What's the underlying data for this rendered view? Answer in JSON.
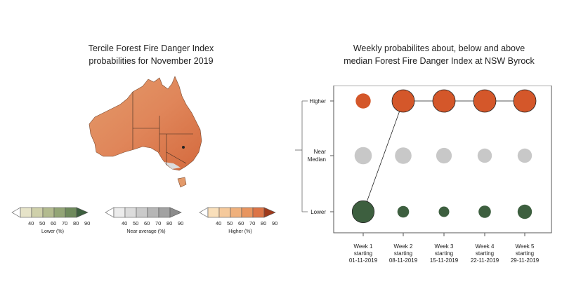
{
  "map_panel": {
    "title_line1": "Tercile Forest Fire Danger Index",
    "title_line2": "probabilities for November 2019"
  },
  "legends": [
    {
      "caption": "Lower (%)",
      "ticks": [
        "40",
        "50",
        "60",
        "70",
        "80",
        "90"
      ],
      "colors": [
        "#e6e3c8",
        "#cfd0aa",
        "#b3bb8f",
        "#93a576",
        "#6f8a5c",
        "#3d5f3f"
      ]
    },
    {
      "caption": "Near average (%)",
      "ticks": [
        "40",
        "50",
        "60",
        "70",
        "80",
        "90"
      ],
      "colors": [
        "#ececec",
        "#dcdcdc",
        "#cacaca",
        "#b6b6b6",
        "#a2a2a2",
        "#8c8c8c"
      ]
    },
    {
      "caption": "Higher (%)",
      "ticks": [
        "40",
        "50",
        "60",
        "70",
        "80",
        "90"
      ],
      "colors": [
        "#f9dfba",
        "#f5c99b",
        "#efb07c",
        "#e8955f",
        "#dc7446",
        "#9e3a1c"
      ]
    }
  ],
  "chart_data": {
    "type": "scatter",
    "title": "Weekly probabilites about, below and above median Forest Fire Danger Index at NSW Byrock",
    "title_line1": "Weekly probabilites about, below and above",
    "title_line2": "median Forest Fire Danger Index at NSW Byrock",
    "categories": [
      {
        "line1": "Week 1",
        "line2": "starting",
        "line3": "01-11-2019"
      },
      {
        "line1": "Week 2",
        "line2": "starting",
        "line3": "08-11-2019"
      },
      {
        "line1": "Week 3",
        "line2": "starting",
        "line3": "15-11-2019"
      },
      {
        "line1": "Week 4",
        "line2": "starting",
        "line3": "22-11-2019"
      },
      {
        "line1": "Week 5",
        "line2": "starting",
        "line3": "29-11-2019"
      }
    ],
    "y_categories": [
      {
        "line1": "Higher",
        "line2": ""
      },
      {
        "line1": "Near",
        "line2": "Median"
      },
      {
        "line1": "Lower",
        "line2": ""
      }
    ],
    "series": [
      {
        "name": "Higher",
        "color": "#d4572a",
        "values": [
          30,
          95,
          95,
          95,
          95
        ]
      },
      {
        "name": "Near Median",
        "color": "#c8c8c8",
        "values": [
          45,
          40,
          33,
          25,
          25
        ]
      },
      {
        "name": "Lower",
        "color": "#3d5f3f",
        "values": [
          90,
          12,
          8,
          15,
          25
        ]
      }
    ],
    "most_likely_path": [
      "Lower",
      "Higher",
      "Higher",
      "Higher",
      "Higher"
    ]
  }
}
